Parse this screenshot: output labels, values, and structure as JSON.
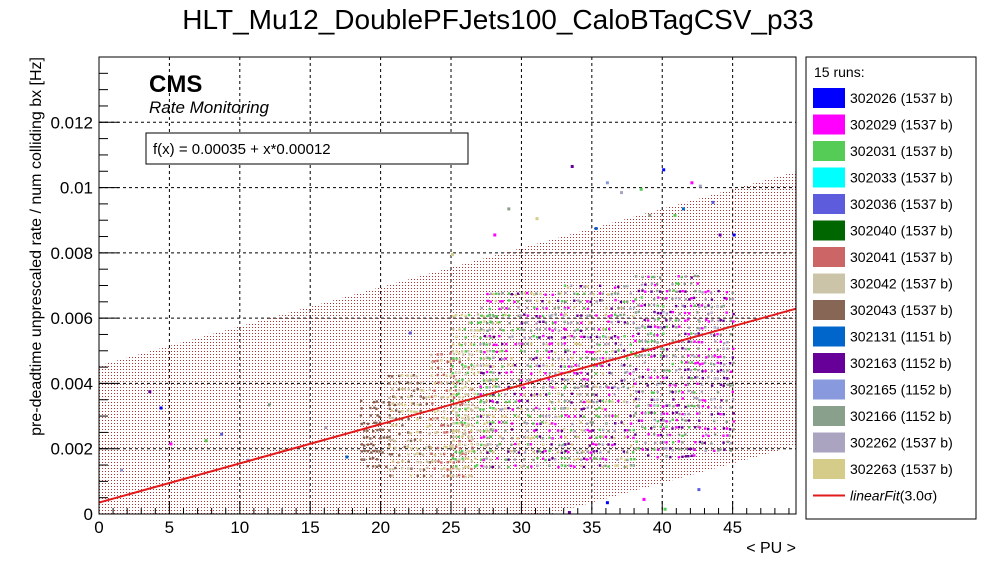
{
  "chart_data": {
    "type": "scatter",
    "title": "HLT_Mu12_DoublePFJets100_CaloBTagCSV_p33",
    "xlabel": "< PU >",
    "ylabel": "pre-deadtime unprescaled rate / num colliding bx [Hz]",
    "xlim": [
      0,
      49.5
    ],
    "ylim": [
      0,
      0.014
    ],
    "x_ticks": [
      "0",
      "5",
      "10",
      "15",
      "20",
      "25",
      "30",
      "35",
      "40",
      "45"
    ],
    "y_ticks": [
      "0",
      "0.002",
      "0.004",
      "0.006",
      "0.008",
      "0.01",
      "0.012"
    ],
    "grid": true,
    "cms_label": "CMS",
    "cms_sublabel": "Rate Monitoring",
    "fit": {
      "label": "f(x) = 0.00035 + x*0.00012",
      "intercept": 0.00035,
      "slope": 0.00012,
      "band_sigma": 3.0,
      "band_halfwidth": 0.0042,
      "color": "#e31a1c"
    },
    "legend": {
      "header": "15 runs:",
      "placement": "right",
      "fit_entry_prefix": "linearFit",
      "fit_entry_suffix": "(3.0σ)",
      "entries": [
        {
          "label": "302026 (1537 b)",
          "color": "#0000ff"
        },
        {
          "label": "302029 (1537 b)",
          "color": "#ff00ff"
        },
        {
          "label": "302031 (1537 b)",
          "color": "#55cc55"
        },
        {
          "label": "302033 (1537 b)",
          "color": "#00ffff"
        },
        {
          "label": "302036 (1537 b)",
          "color": "#5c5cdc"
        },
        {
          "label": "302040 (1537 b)",
          "color": "#006600"
        },
        {
          "label": "302041 (1537 b)",
          "color": "#cc6666"
        },
        {
          "label": "302042 (1537 b)",
          "color": "#ccc4a8"
        },
        {
          "label": "302043 (1537 b)",
          "color": "#886655"
        },
        {
          "label": "302131 (1151 b)",
          "color": "#0066cc"
        },
        {
          "label": "302163 (1152 b)",
          "color": "#660099"
        },
        {
          "label": "302165 (1152 b)",
          "color": "#8899dd"
        },
        {
          "label": "302166 (1152 b)",
          "color": "#88a08c"
        },
        {
          "label": "302262 (1537 b)",
          "color": "#aaa4c0"
        },
        {
          "label": "302263 (1537 b)",
          "color": "#d4cc88"
        }
      ]
    },
    "bands": [
      {
        "pu_range": [
          18.5,
          20.5
        ],
        "y_range": [
          0.0015,
          0.0036
        ],
        "runs": [
          8
        ]
      },
      {
        "pu_range": [
          20.5,
          23.5
        ],
        "y_range": [
          0.0012,
          0.0043
        ],
        "runs": [
          7,
          14,
          8
        ]
      },
      {
        "pu_range": [
          23.5,
          26.5
        ],
        "y_range": [
          0.0012,
          0.005
        ],
        "runs": [
          7,
          14,
          6
        ]
      },
      {
        "pu_range": [
          25.0,
          28.0
        ],
        "y_range": [
          0.0015,
          0.0062
        ],
        "runs": [
          14,
          7,
          2
        ]
      },
      {
        "pu_range": [
          27.0,
          33.0
        ],
        "y_range": [
          0.0015,
          0.0068
        ],
        "runs": [
          10,
          1,
          2,
          13,
          14,
          12
        ]
      },
      {
        "pu_range": [
          33.0,
          38.0
        ],
        "y_range": [
          0.0015,
          0.0072
        ],
        "runs": [
          10,
          2,
          1,
          13,
          12,
          14
        ]
      },
      {
        "pu_range": [
          38.0,
          42.5
        ],
        "y_range": [
          0.0018,
          0.0074
        ],
        "runs": [
          10,
          2,
          12,
          1,
          13
        ]
      },
      {
        "pu_range": [
          42.5,
          45.0
        ],
        "y_range": [
          0.002,
          0.007
        ],
        "runs": [
          10,
          12,
          1,
          13
        ]
      }
    ],
    "sparse_points": [
      [
        3.5,
        0.0037
      ],
      [
        4.3,
        0.0032
      ],
      [
        5.0,
        0.0021
      ],
      [
        7.5,
        0.0022
      ],
      [
        8.6,
        0.0024
      ],
      [
        12.0,
        0.0033
      ],
      [
        16.0,
        0.0026
      ],
      [
        17.5,
        0.0017
      ],
      [
        13.0,
        0.0019
      ],
      [
        10.5,
        0.0016
      ],
      [
        33.5,
        0.0106
      ],
      [
        40.0,
        0.0105
      ],
      [
        42.0,
        0.0101
      ],
      [
        38.4,
        0.0099
      ],
      [
        43.5,
        0.0095
      ],
      [
        29.0,
        0.0093
      ],
      [
        37.0,
        0.0098
      ],
      [
        41.4,
        0.0093
      ],
      [
        31.0,
        0.009
      ],
      [
        36.0,
        0.0101
      ],
      [
        44.0,
        0.0085
      ],
      [
        45.0,
        0.0085
      ],
      [
        28.0,
        0.0085
      ],
      [
        40.8,
        0.0091
      ],
      [
        22.0,
        0.0055
      ],
      [
        39.0,
        0.0091
      ],
      [
        42.6,
        0.01
      ],
      [
        35.2,
        0.0087
      ],
      [
        25.0,
        0.0079
      ],
      [
        1.5,
        0.0013
      ],
      [
        33.3,
        0.0
      ],
      [
        36.0,
        0.0003
      ],
      [
        38.6,
        0.0004
      ],
      [
        40.1,
        0.0001
      ],
      [
        42.5,
        0.0007
      ]
    ]
  }
}
